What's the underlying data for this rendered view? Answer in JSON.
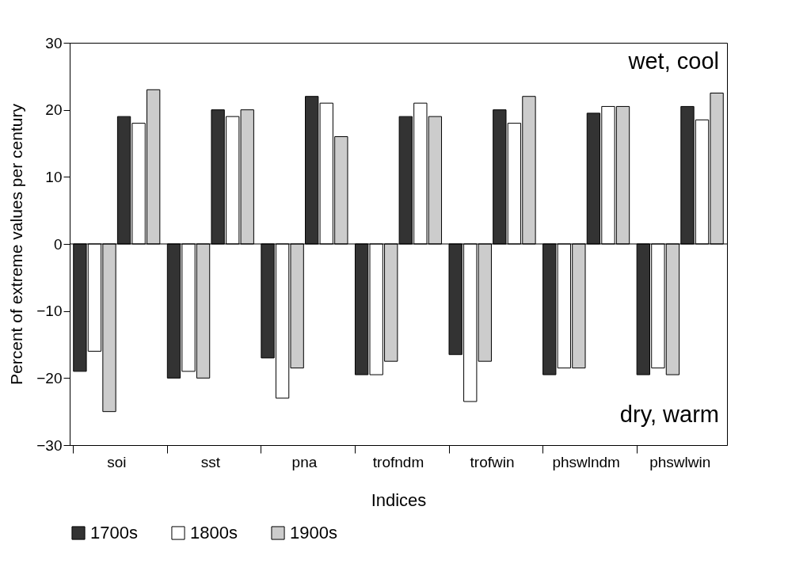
{
  "chart_data": {
    "type": "bar",
    "xlabel": "Indices",
    "ylabel": "Percent of extreme values per century",
    "categories": [
      "soi",
      "sst",
      "pna",
      "trofndm",
      "trofwin",
      "phswlndm",
      "phswlwin"
    ],
    "series": [
      {
        "color": "#333333",
        "values": [
          -19,
          -20,
          -17,
          -19.5,
          -16.5,
          -19.5,
          -19.5
        ]
      },
      {
        "color": "#ffffff",
        "values": [
          -16,
          -19,
          -23,
          -19.5,
          -23.5,
          -18.5,
          -18.5
        ]
      },
      {
        "color": "#cccccc",
        "values": [
          -25,
          -20,
          -18.5,
          -17.5,
          -17.5,
          -18.5,
          -19.5
        ]
      },
      {
        "name": "1700s",
        "color": "#333333",
        "values": [
          19,
          20,
          22,
          19,
          20,
          19.5,
          20.5
        ]
      },
      {
        "name": "1800s",
        "color": "#ffffff",
        "values": [
          18,
          19,
          21,
          21,
          18,
          20.5,
          18.5
        ]
      },
      {
        "name": "1900s",
        "color": "#cccccc",
        "values": [
          23,
          20,
          16,
          19,
          22,
          20.5,
          22.5
        ]
      }
    ],
    "ylim": [
      -30,
      30
    ],
    "yticks": [
      -30,
      -20,
      -10,
      0,
      10,
      20,
      30
    ],
    "ref_lines": [
      {
        "axis": "y",
        "value": 0
      }
    ],
    "annotations": [
      "wet, cool",
      "dry, warm"
    ],
    "legend": "bottom",
    "grid": false
  }
}
